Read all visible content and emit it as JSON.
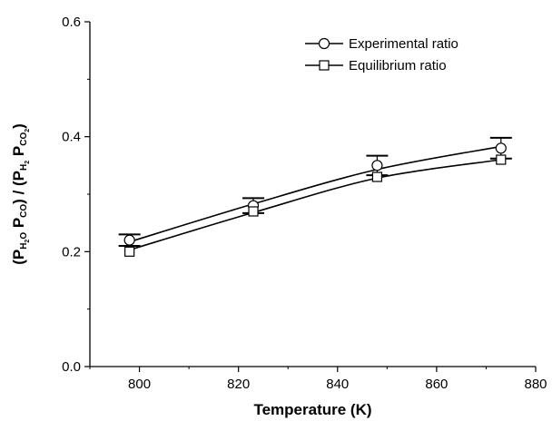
{
  "chart_data": {
    "type": "line",
    "xlabel": "Temperature (K)",
    "ylabel": "(P",
    "ylabel_parts": [
      {
        "text": "(P"
      },
      {
        "text": "H",
        "sub": true
      },
      {
        "text": "2",
        "subsub": true
      },
      {
        "text": "O",
        "sub": true
      },
      {
        "text": " P"
      },
      {
        "text": "CO",
        "sub": true
      },
      {
        "text": ") / (P"
      },
      {
        "text": "H",
        "sub": true
      },
      {
        "text": "2",
        "subsub": true
      },
      {
        "text": " P"
      },
      {
        "text": "CO",
        "sub": true
      },
      {
        "text": "2",
        "subsub": true
      },
      {
        "text": ")"
      }
    ],
    "xlim": [
      790,
      880
    ],
    "ylim": [
      0.0,
      0.6
    ],
    "xticks": [
      800,
      820,
      840,
      860,
      880
    ],
    "xtick_labels": [
      "800",
      "820",
      "840",
      "860",
      "880"
    ],
    "yticks": [
      0.0,
      0.2,
      0.4,
      0.6
    ],
    "ytick_labels": [
      "0.0",
      "0.2",
      "0.4",
      "0.6"
    ],
    "grid": false,
    "legend_position": "top-right",
    "series": [
      {
        "name": "Experimental ratio",
        "marker": "circle",
        "x": [
          798,
          823,
          848,
          873
        ],
        "y": [
          0.22,
          0.28,
          0.35,
          0.38
        ],
        "error": [
          0.01,
          0.013,
          0.017,
          0.018
        ],
        "fit": [
          0.217,
          0.283,
          0.343,
          0.383
        ]
      },
      {
        "name": "Equilibrium ratio",
        "marker": "square",
        "x": [
          798,
          823,
          848,
          873
        ],
        "y": [
          0.2,
          0.27,
          0.33,
          0.36
        ],
        "fit": [
          0.203,
          0.268,
          0.328,
          0.36
        ]
      }
    ],
    "line_color": "#000000"
  }
}
